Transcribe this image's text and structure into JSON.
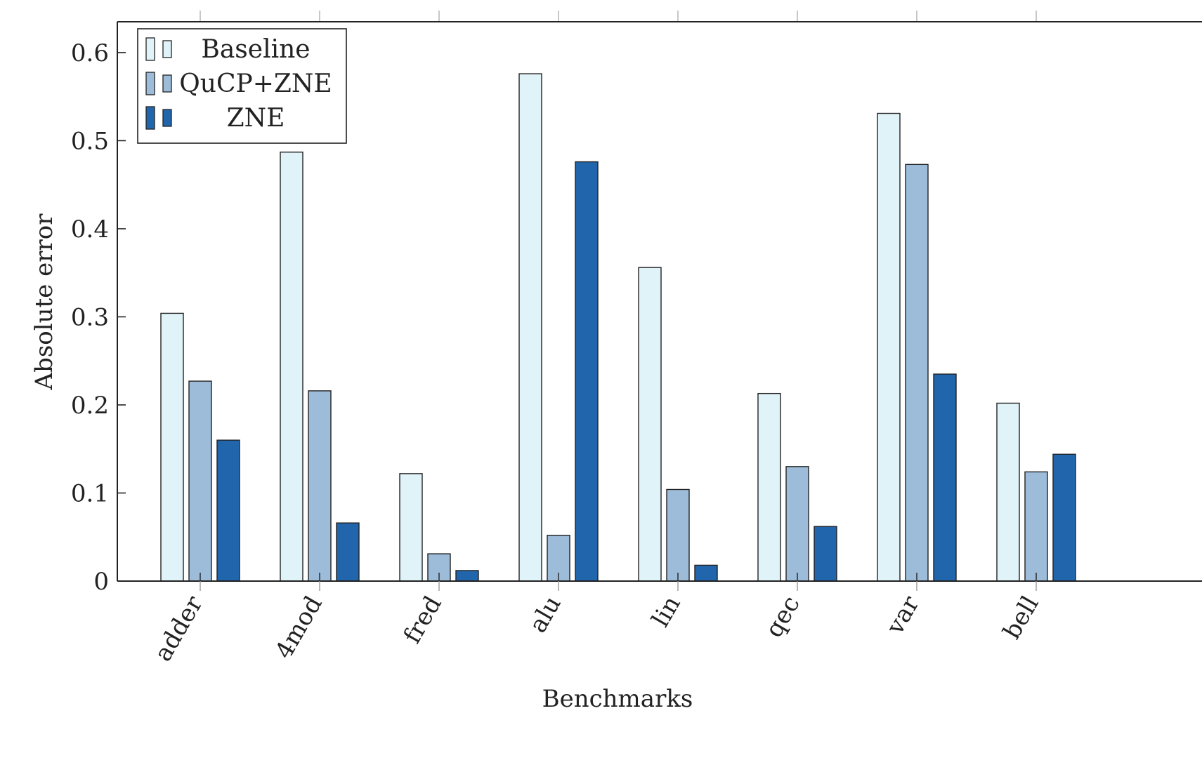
{
  "chart_data": {
    "type": "bar",
    "xlabel": "Benchmarks",
    "ylabel": "Absolute error",
    "ylim": [
      0,
      0.635
    ],
    "yticks": [
      0,
      0.1,
      0.2,
      0.3,
      0.4,
      0.5,
      0.6
    ],
    "ytick_labels": [
      "0",
      "0.1",
      "0.2",
      "0.3",
      "0.4",
      "0.5",
      "0.6"
    ],
    "categories": [
      "adder",
      "4mod",
      "fred",
      "alu",
      "lin",
      "qec",
      "var",
      "bell"
    ],
    "legend_position": "top-left",
    "grid": false,
    "series": [
      {
        "name": "Baseline",
        "color": "#e0f3f8",
        "values": [
          0.304,
          0.487,
          0.122,
          0.576,
          0.356,
          0.213,
          0.531,
          0.202
        ]
      },
      {
        "name": "QuCP+ZNE",
        "color": "#9dbcd9",
        "values": [
          0.227,
          0.216,
          0.031,
          0.052,
          0.104,
          0.13,
          0.473,
          0.124
        ]
      },
      {
        "name": "ZNE",
        "color": "#2166ac",
        "values": [
          0.16,
          0.066,
          0.012,
          0.476,
          0.018,
          0.062,
          0.235,
          0.144
        ]
      }
    ]
  }
}
